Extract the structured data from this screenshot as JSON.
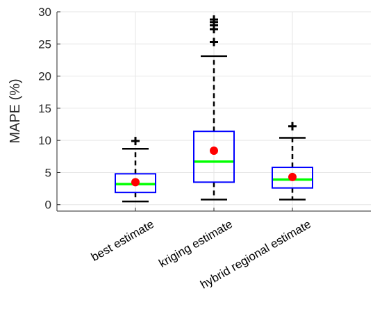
{
  "chart_data": {
    "type": "box",
    "title": "",
    "xlabel": "",
    "ylabel": "MAPE (%)",
    "ylim": [
      -1,
      30
    ],
    "yticks": [
      0,
      5,
      10,
      15,
      20,
      25,
      30
    ],
    "grid": true,
    "categories": [
      "best estimate",
      "kriging estimate",
      "hybrid regional estimate"
    ],
    "boxes": [
      {
        "whisker_low": 0.5,
        "q1": 1.9,
        "median": 3.2,
        "q3": 4.8,
        "whisker_high": 8.7,
        "mean": 3.5,
        "outliers": [
          9.9
        ]
      },
      {
        "whisker_low": 0.8,
        "q1": 3.5,
        "median": 6.7,
        "q3": 11.4,
        "whisker_high": 23.1,
        "mean": 8.4,
        "outliers": [
          25.3,
          27.3,
          27.9,
          28.4,
          28.8
        ]
      },
      {
        "whisker_low": 0.8,
        "q1": 2.6,
        "median": 3.9,
        "q3": 5.8,
        "whisker_high": 10.4,
        "mean": 4.3,
        "outliers": [
          12.2
        ]
      }
    ],
    "colors": {
      "box": "#0000ff",
      "median": "#00ff00",
      "mean": "#ff0000",
      "whisker": "#000000",
      "outlier": "#000000",
      "grid": "#e6e6e6",
      "axis": "#262626"
    }
  }
}
